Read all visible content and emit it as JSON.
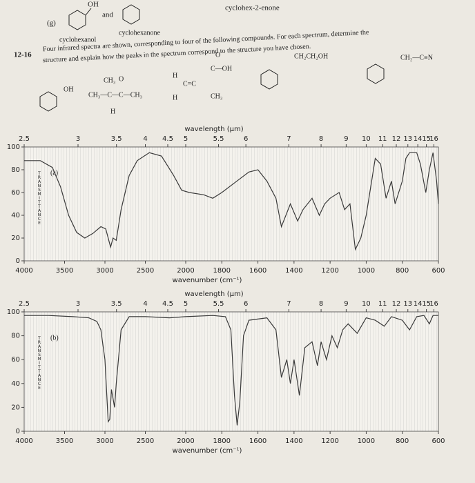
{
  "header": {
    "part": "(g)",
    "oh": "OH",
    "and": "and",
    "left_name": "cyclohexanol",
    "right_name": "cyclohexanone",
    "third_name": "cyclohex-2-enone"
  },
  "problem": {
    "number": "12-16",
    "line1": "Four infrared spectra are shown, corresponding to four of the following compounds. For each spectrum, determine the",
    "line2": "structure and explain how the peaks in the spectrum correspond to the structure you have chosen."
  },
  "compounds": [
    {
      "labels": [
        "OH"
      ]
    },
    {
      "labels": [
        "CH₃",
        "O",
        "CH₃—C—C—CH₃",
        "H"
      ]
    },
    {
      "labels": [
        "H",
        "C=C",
        "H",
        "O",
        "C—OH",
        "CH₃"
      ]
    },
    {
      "labels": [
        "CH₂CH₂OH"
      ]
    },
    {
      "labels": [
        "CH₂—C≡N"
      ]
    }
  ],
  "chart_data": [
    {
      "type": "line",
      "panel_label": "(a)",
      "y_label": "TRANSMITTANCE",
      "x_label": "wavenumber (cm⁻¹)",
      "x2_label": "wavelength (μm)",
      "xlim": [
        4000,
        600
      ],
      "x_scale_break": 2000,
      "xticks": [
        4000,
        3500,
        3000,
        2500,
        2000,
        1800,
        1600,
        1400,
        1200,
        1000,
        800,
        600
      ],
      "x2ticks": [
        2.5,
        3,
        3.5,
        4,
        4.5,
        5,
        5.5,
        6,
        7,
        8,
        9,
        10,
        11,
        12,
        13,
        14,
        15,
        16
      ],
      "ylim": [
        0,
        100
      ],
      "yticks": [
        0,
        20,
        40,
        60,
        80,
        100
      ],
      "color": "#3a3a3a",
      "x": [
        4000,
        3800,
        3650,
        3550,
        3450,
        3350,
        3250,
        3150,
        3050,
        2990,
        2930,
        2900,
        2860,
        2800,
        2700,
        2600,
        2450,
        2300,
        2150,
        2050,
        1980,
        1900,
        1850,
        1800,
        1700,
        1650,
        1600,
        1550,
        1500,
        1470,
        1450,
        1420,
        1380,
        1350,
        1300,
        1260,
        1230,
        1200,
        1150,
        1120,
        1090,
        1060,
        1030,
        1000,
        970,
        950,
        920,
        890,
        860,
        840,
        800,
        780,
        760,
        720,
        700,
        670,
        650,
        630,
        610,
        600
      ],
      "values": [
        88,
        88,
        82,
        65,
        40,
        25,
        20,
        24,
        30,
        28,
        12,
        20,
        18,
        45,
        75,
        88,
        95,
        92,
        75,
        62,
        60,
        58,
        55,
        60,
        72,
        78,
        80,
        70,
        55,
        30,
        38,
        50,
        35,
        45,
        55,
        40,
        50,
        55,
        60,
        45,
        50,
        10,
        20,
        40,
        70,
        90,
        85,
        55,
        70,
        50,
        70,
        90,
        95,
        95,
        85,
        60,
        80,
        95,
        70,
        50
      ]
    },
    {
      "type": "line",
      "panel_label": "(b)",
      "y_label": "TRANSMITTANCE",
      "x_label": "wavenumber (cm⁻¹)",
      "x2_label": "wavelength (μm)",
      "xlim": [
        4000,
        600
      ],
      "x_scale_break": 2000,
      "xticks": [
        4000,
        3500,
        3000,
        2500,
        2000,
        1800,
        1600,
        1400,
        1200,
        1000,
        800,
        600
      ],
      "x2ticks": [
        2.5,
        3,
        3.5,
        4,
        4.5,
        5,
        5.5,
        6,
        7,
        8,
        9,
        10,
        11,
        12,
        13,
        14,
        15,
        16
      ],
      "ylim": [
        0,
        100
      ],
      "yticks": [
        0,
        20,
        40,
        60,
        80,
        100
      ],
      "color": "#3a3a3a",
      "x": [
        4000,
        3700,
        3400,
        3200,
        3100,
        3050,
        3000,
        2960,
        2940,
        2920,
        2880,
        2860,
        2800,
        2700,
        2500,
        2200,
        2000,
        1850,
        1780,
        1750,
        1730,
        1715,
        1700,
        1680,
        1650,
        1550,
        1500,
        1470,
        1440,
        1420,
        1400,
        1370,
        1340,
        1300,
        1270,
        1250,
        1220,
        1190,
        1160,
        1130,
        1100,
        1050,
        1000,
        950,
        900,
        860,
        800,
        760,
        720,
        680,
        650,
        630,
        600
      ],
      "values": [
        97,
        97,
        96,
        95,
        92,
        85,
        60,
        8,
        10,
        35,
        20,
        40,
        85,
        96,
        96,
        95,
        96,
        97,
        96,
        85,
        30,
        5,
        25,
        80,
        93,
        95,
        85,
        45,
        60,
        40,
        60,
        30,
        70,
        75,
        55,
        75,
        60,
        80,
        70,
        85,
        90,
        82,
        95,
        93,
        88,
        96,
        93,
        85,
        96,
        97,
        90,
        97,
        97
      ]
    }
  ]
}
